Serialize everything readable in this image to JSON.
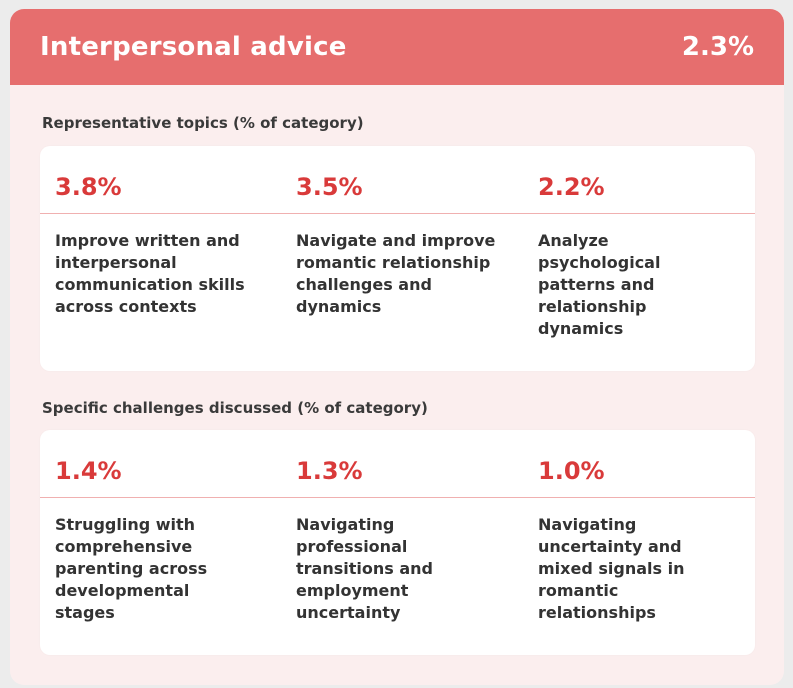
{
  "header": {
    "title": "Interpersonal advice",
    "value": "2.3%"
  },
  "topics": {
    "label": "Representative topics (% of category)",
    "items": [
      {
        "value": "3.8%",
        "text": "Improve written and interpersonal communication skills across contexts"
      },
      {
        "value": "3.5%",
        "text": "Navigate and improve romantic relationship challenges and dynamics"
      },
      {
        "value": "2.2%",
        "text": "Analyze psychological patterns and relationship dynamics"
      }
    ]
  },
  "challenges": {
    "label": "Specific challenges discussed (% of category)",
    "items": [
      {
        "value": "1.4%",
        "text": "Struggling with comprehensive parenting across developmental stages"
      },
      {
        "value": "1.3%",
        "text": "Navigating professional transitions and employment uncertainty"
      },
      {
        "value": "1.0%",
        "text": "Navigating uncertainty and mixed signals in romantic relationships"
      }
    ]
  },
  "colors": {
    "header_bg": "#e66e6e",
    "accent": "#d93a3a",
    "card_bg": "#fbeeee"
  }
}
